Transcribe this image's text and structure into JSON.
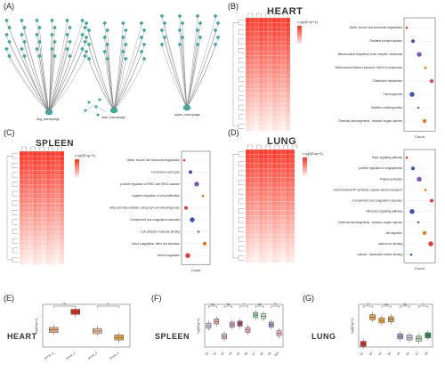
{
  "panels": {
    "a": {
      "label": "(A)"
    },
    "b": {
      "label": "(B)",
      "title": "HEART",
      "legend_title": "Log2(Exp+1)"
    },
    "c": {
      "label": "(C)",
      "title": "SPLEEN",
      "legend_title": "Log2(Exp+1)"
    },
    "d": {
      "label": "(D)",
      "title": "LUNG",
      "legend_title": "Log2(Exp+1)"
    },
    "e": {
      "label": "(E)",
      "title": "HEART"
    },
    "f": {
      "label": "(F)",
      "title": "SPLEEN"
    },
    "g": {
      "label": "(G)",
      "title": "LUNG"
    }
  },
  "network": {
    "hubs": [
      "lung_macrophage",
      "heart_macrophage",
      "spleen_macrophage"
    ]
  },
  "heart_pathways": [
    "Valine, leucine and isoleucine degradation",
    "Oxidative phosphorylation",
    "Mitochondrial respiratory chain complex I assembly",
    "Mitochondrial electron transport, NADH to ubiquinone",
    "Glutathione metabolism",
    "Thermogenesis",
    "Diabetic cardiomyopathy",
    "Chemical carcinogenesis - reactive oxygen species"
  ],
  "spleen_pathways": [
    "Valine, leucine and isoleucine degradation",
    "Fructose/sn-acid cycle",
    "positive regulation of ERK1 and ERK2 cascade",
    "negative regulation of cell proliferation",
    "fatty acid beta-oxidation using acyl-CoA dehydrogenase",
    "Complement and coagulation cascades",
    "cell adhesion molecule binding",
    "blood coagulation, fibrin clot formation",
    "blood coagulation"
  ],
  "lung_pathways": [
    "Rap1 signaling pathway",
    "positive regulation of angiogenesis",
    "Platelet activation",
    "mitochondrial ATP synthesis coupled electron transport",
    "Complement and coagulation cascades",
    "Ribosome signaling pathway",
    "Chemical carcinogenesis - reactive oxygen species",
    "cell migration",
    "calcium ion binding",
    "calcium - dependent protein binding"
  ],
  "dot_axis": {
    "xlabel": "Count"
  },
  "box_axis": {
    "ylabel": "log2(Exp+1)"
  },
  "chart_data": [
    {
      "type": "bar",
      "title": "HEART",
      "categories": [
        "group_1",
        "group_2",
        "group_3",
        "group_4"
      ],
      "values": [
        1.6,
        3.3,
        1.5,
        0.9
      ],
      "colors": [
        "#E9A27A",
        "#D7301F",
        "#E8B996",
        "#E3A64A"
      ],
      "annotations": [
        "***",
        "**"
      ]
    },
    {
      "type": "bar",
      "title": "SPLEEN",
      "categories": [
        "g1",
        "g2",
        "g3",
        "g4",
        "g5",
        "g6",
        "g7",
        "g8",
        "g9",
        "g10"
      ],
      "values": [
        2.0,
        2.4,
        1.0,
        2.1,
        2.2,
        1.6,
        3.0,
        2.9,
        2.1,
        1.3
      ],
      "colors": [
        "#C6C4E6",
        "#E6A9A3",
        "#E3B0CC",
        "#CC9AAE",
        "#9C4C6E",
        "#E7A7C4",
        "#8FD9A2",
        "#C6E2C0",
        "#9A9AD0",
        "#EEAFC3"
      ],
      "annotations": [
        "ns",
        "ns",
        "*",
        "ns",
        "**"
      ]
    },
    {
      "type": "bar",
      "title": "LUNG",
      "categories": [
        "g1",
        "g2",
        "g3",
        "g4",
        "g5",
        "g6",
        "g7",
        "g8"
      ],
      "values": [
        0.3,
        2.8,
        2.5,
        2.6,
        1.0,
        0.9,
        0.8,
        1.1
      ],
      "colors": [
        "#D7301F",
        "#F0A040",
        "#F0A040",
        "#D6A25C",
        "#9A9AD0",
        "#C6C4E6",
        "#B5D6A8",
        "#2E8B57"
      ],
      "annotations": [
        "**",
        "ns",
        "ns",
        "*"
      ]
    }
  ]
}
